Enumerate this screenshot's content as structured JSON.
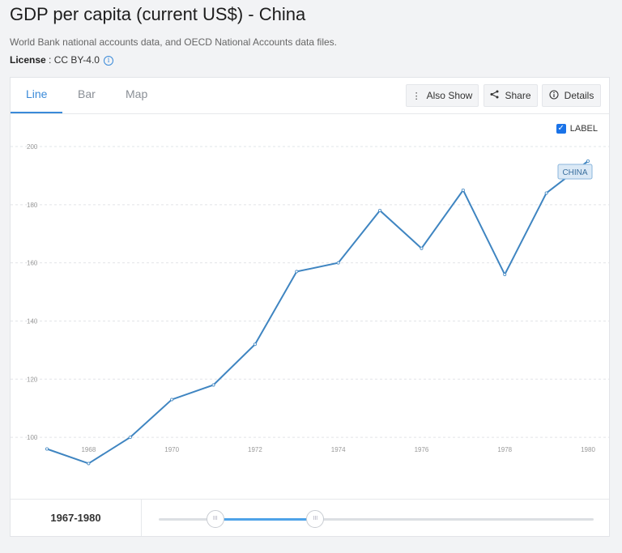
{
  "header": {
    "title": "GDP per capita (current US$) - China",
    "source": "World Bank national accounts data, and OECD National Accounts data files.",
    "license_label": "License",
    "license_sep": " : ",
    "license_value": "CC BY-4.0",
    "info_icon": "info-icon"
  },
  "tabs": [
    {
      "label": "Line",
      "active": true
    },
    {
      "label": "Bar",
      "active": false
    },
    {
      "label": "Map",
      "active": false
    }
  ],
  "toolbar": {
    "also_show": {
      "label": "Also Show",
      "icon": "vertical-ellipsis-icon"
    },
    "share": {
      "label": "Share",
      "icon": "share-icon"
    },
    "details": {
      "label": "Details",
      "icon": "info-icon"
    }
  },
  "label_toggle": {
    "label": "LABEL",
    "checked": true
  },
  "colors": {
    "line": "#3f85c1",
    "accent": "#3a8ad9",
    "grid": "#e2e4e8",
    "slider_fill": "#4ea3e8"
  },
  "chart_data": {
    "type": "line",
    "title": "GDP per capita (current US$) - China",
    "xlabel": "",
    "ylabel": "",
    "x": [
      1967,
      1968,
      1969,
      1970,
      1971,
      1972,
      1973,
      1974,
      1975,
      1976,
      1977,
      1978,
      1979,
      1980
    ],
    "series": [
      {
        "name": "CHINA",
        "values": [
          96,
          91,
          100,
          113,
          118,
          132,
          157,
          160,
          178,
          165,
          185,
          156,
          184,
          195
        ]
      }
    ],
    "xticks": [
      1968,
      1970,
      1972,
      1974,
      1976,
      1978,
      1980
    ],
    "yticks": [
      100,
      120,
      140,
      160,
      180,
      200
    ],
    "xlim": [
      1967,
      1980
    ],
    "ylim": [
      85,
      200
    ],
    "grid": true,
    "series_label": "CHINA"
  },
  "range": {
    "start": "1967",
    "separator": " - ",
    "end": "1980",
    "fill_start": 0.13,
    "fill_end": 0.36
  }
}
